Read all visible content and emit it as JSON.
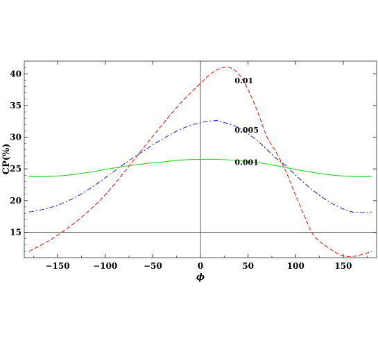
{
  "chart_data": {
    "type": "line",
    "title": "",
    "xlabel": "ϕ",
    "ylabel": "CP(%)",
    "xlim": [
      -185,
      185
    ],
    "ylim": [
      11,
      42
    ],
    "x_ticks": [
      -150,
      -100,
      -50,
      0,
      50,
      100,
      150
    ],
    "x_tick_labels": [
      "−150",
      "−100",
      "−50",
      "0",
      "50",
      "100",
      "150"
    ],
    "y_ticks": [
      15,
      20,
      25,
      30,
      35,
      40
    ],
    "y_tick_labels": [
      "15",
      "20",
      "25",
      "30",
      "35",
      "40"
    ],
    "grid": false,
    "reference_lines": {
      "x": 0,
      "y": 15
    },
    "series": [
      {
        "name": "0.01",
        "color": "#e8201c",
        "style": "dashed",
        "label_at": [
          36,
          38.5
        ],
        "x": [
          -180,
          -160,
          -140,
          -120,
          -100,
          -80,
          -60,
          -40,
          -20,
          0,
          10,
          20,
          30,
          40,
          50,
          60,
          70,
          80,
          90,
          100,
          110,
          120,
          140,
          150,
          160,
          170,
          180
        ],
        "y": [
          12.0,
          13.6,
          15.6,
          18.0,
          20.9,
          24.5,
          28.3,
          32.0,
          35.5,
          38.5,
          39.9,
          40.8,
          41.0,
          40.0,
          37.5,
          34.0,
          30.0,
          27.5,
          24.5,
          20.8,
          17.3,
          14.3,
          12.0,
          11.3,
          11.2,
          11.5,
          12.0
        ]
      },
      {
        "name": "0.005",
        "color": "#2b2bd6",
        "style": "dashdot",
        "label_at": [
          36,
          30.7
        ],
        "x": [
          -180,
          -160,
          -140,
          -120,
          -100,
          -80,
          -60,
          -40,
          -20,
          0,
          15,
          20,
          40,
          60,
          80,
          90,
          100,
          120,
          140,
          160,
          180
        ],
        "y": [
          18.2,
          18.8,
          19.9,
          21.5,
          23.6,
          25.8,
          27.8,
          29.7,
          31.3,
          32.3,
          32.6,
          32.5,
          31.5,
          29.4,
          26.6,
          25.5,
          24.0,
          21.4,
          19.4,
          18.2,
          18.2
        ]
      },
      {
        "name": "0.001",
        "color": "#22d622",
        "style": "solid",
        "label_at": [
          36,
          25.6
        ],
        "x": [
          -180,
          -160,
          -140,
          -120,
          -100,
          -80,
          -60,
          -40,
          -20,
          0,
          20,
          40,
          60,
          80,
          100,
          120,
          140,
          160,
          180
        ],
        "y": [
          23.8,
          23.8,
          24.0,
          24.4,
          24.9,
          25.4,
          25.8,
          26.1,
          26.4,
          26.5,
          26.5,
          26.3,
          26.0,
          25.5,
          24.9,
          24.4,
          24.0,
          23.8,
          23.8
        ]
      }
    ]
  }
}
